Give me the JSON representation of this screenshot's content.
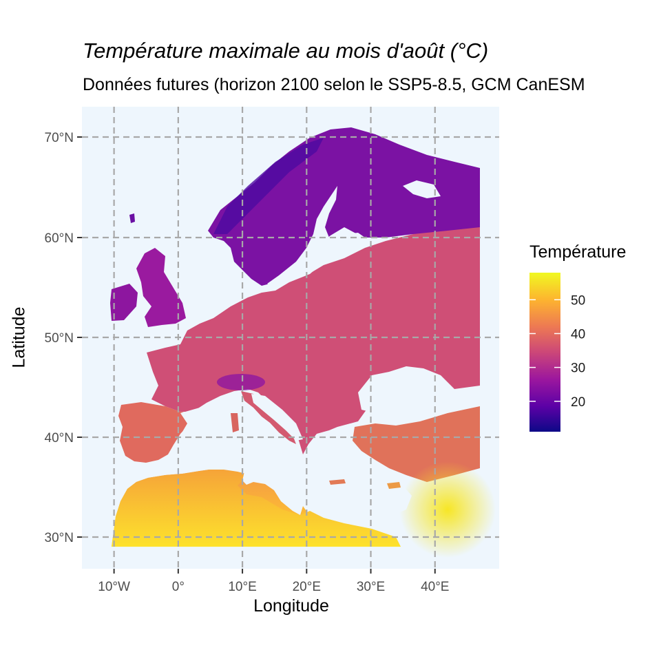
{
  "map": {
    "title": "Température maximale au mois d'août (°C)",
    "subtitle": "Données futures (horizon 2100 selon le SSP5-8.5, GCM CanESM",
    "xlabel": "Longitude",
    "ylabel": "Latitude",
    "x_ticks": [
      "10°W",
      "0°",
      "10°E",
      "20°E",
      "30°E",
      "40°E"
    ],
    "x_tick_values": [
      -10,
      0,
      10,
      20,
      30,
      40
    ],
    "y_ticks": [
      "30°N",
      "40°N",
      "50°N",
      "60°N",
      "70°N"
    ],
    "y_tick_values": [
      30,
      40,
      50,
      60,
      70
    ],
    "xlim": [
      -15,
      50
    ],
    "ylim": [
      27,
      73
    ],
    "raster_extent": {
      "lon": [
        -10,
        47
      ],
      "lat": [
        29,
        71
      ]
    },
    "background_color": "#eef6fd",
    "grid": "dashed-grey"
  },
  "legend": {
    "title": "Température",
    "labels": [
      "50",
      "40",
      "30",
      "20"
    ],
    "values": [
      50,
      40,
      30,
      20
    ],
    "min": 11,
    "max": 58,
    "palette": "plasma",
    "colors": [
      "#0d0887",
      "#5c01a6",
      "#9c179e",
      "#cc4778",
      "#ed7953",
      "#fdb42f",
      "#f0f921"
    ]
  }
}
